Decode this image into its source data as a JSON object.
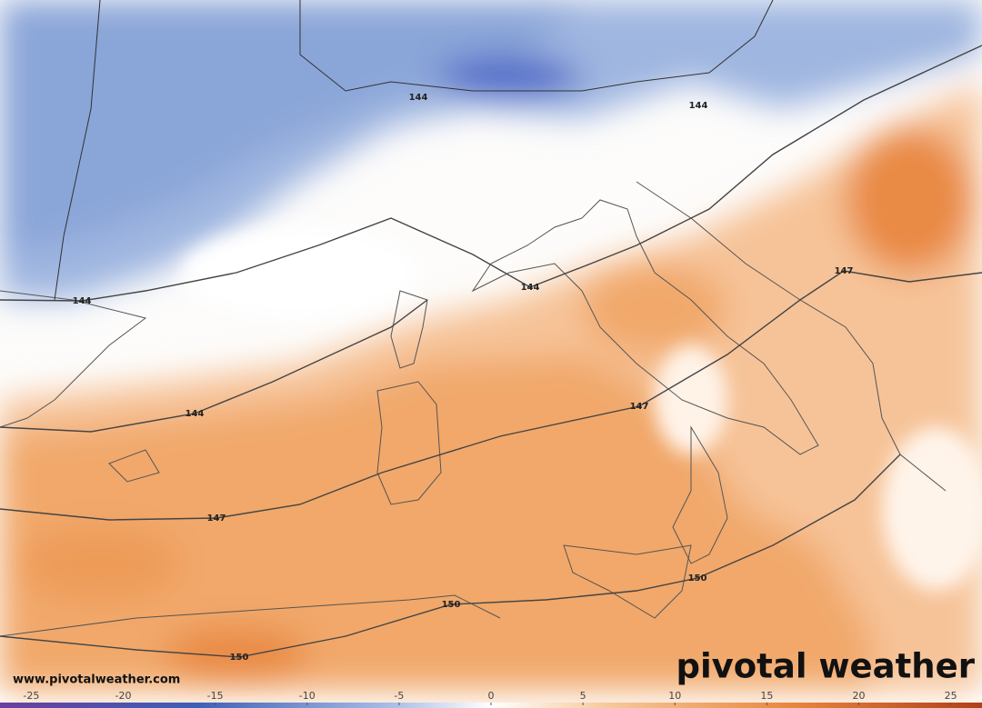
{
  "map": {
    "contour_labels": [
      144,
      144,
      144,
      144,
      144,
      147,
      147,
      147,
      150,
      150,
      150
    ],
    "watermark": "www.pivotalweather.com",
    "logo": "pivotal weather"
  },
  "colorbar": {
    "lim": [
      -26.7,
      26.7
    ],
    "ticks": [
      -25,
      -20,
      -15,
      -10,
      -5,
      0,
      5,
      10,
      15,
      20,
      25
    ]
  }
}
